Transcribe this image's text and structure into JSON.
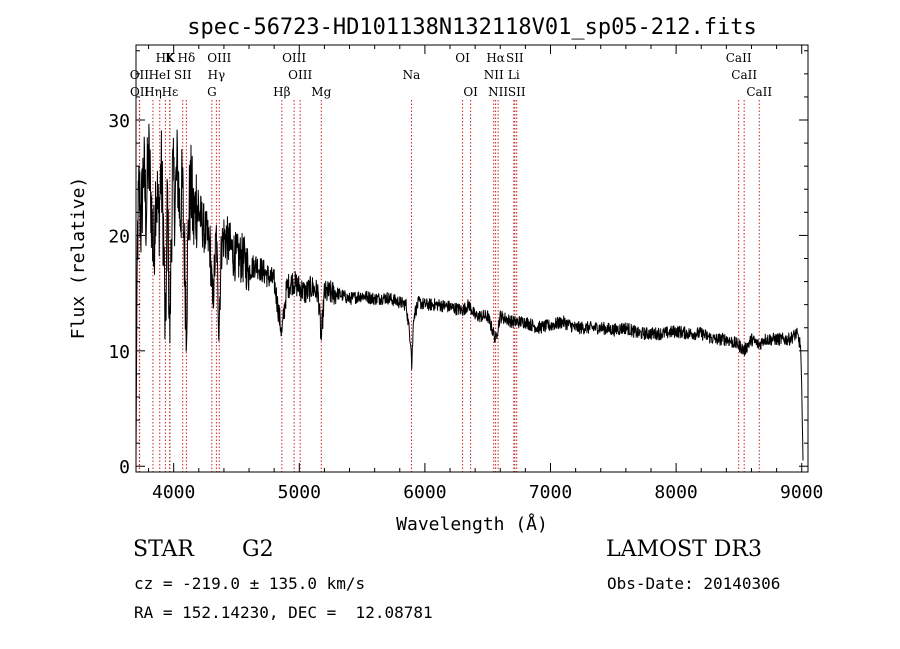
{
  "chart_data": {
    "type": "line",
    "title": "spec-56723-HD101138N132118V01_sp05-212.fits",
    "xlabel": "Wavelength (Å)",
    "ylabel": "Flux (relative)",
    "xlim": [
      3700,
      9050
    ],
    "ylim": [
      -0.5,
      36.5
    ],
    "xticks": [
      4000,
      5000,
      6000,
      7000,
      8000,
      9000
    ],
    "yticks": [
      0,
      10,
      20,
      30
    ],
    "xtick_labels": [
      "4000",
      "5000",
      "6000",
      "7000",
      "8000",
      "9000"
    ],
    "ytick_labels": [
      "0",
      "10",
      "20",
      "30"
    ],
    "line_color": "#000000",
    "marker_color": "#cc2222",
    "grid": false,
    "legend": "none",
    "spectrum": {
      "name": "flux",
      "x": [
        3700,
        3710,
        3725,
        3740,
        3760,
        3780,
        3800,
        3820,
        3840,
        3860,
        3880,
        3900,
        3920,
        3934,
        3950,
        3968,
        3990,
        4010,
        4030,
        4050,
        4070,
        4101,
        4120,
        4140,
        4160,
        4180,
        4200,
        4230,
        4260,
        4290,
        4310,
        4340,
        4360,
        4380,
        4400,
        4450,
        4500,
        4550,
        4600,
        4650,
        4700,
        4750,
        4800,
        4861,
        4900,
        4950,
        5000,
        5050,
        5100,
        5150,
        5175,
        5200,
        5300,
        5400,
        5500,
        5600,
        5700,
        5800,
        5850,
        5890,
        5895,
        5910,
        5950,
        6000,
        6100,
        6200,
        6300,
        6350,
        6400,
        6500,
        6563,
        6600,
        6700,
        6800,
        6900,
        7000,
        7100,
        7200,
        7300,
        7400,
        7500,
        7600,
        7700,
        7800,
        7900,
        8000,
        8100,
        8200,
        8300,
        8400,
        8500,
        8542,
        8600,
        8662,
        8700,
        8800,
        8900,
        8960,
        8990,
        9000,
        9010
      ],
      "values": [
        0.3,
        19,
        24,
        21,
        26,
        22,
        27,
        23,
        18,
        25,
        21,
        26,
        20,
        10,
        24,
        11,
        25,
        23,
        26,
        22,
        24,
        13,
        22,
        24,
        21,
        23,
        22,
        21,
        20,
        19,
        14,
        20,
        12,
        19,
        20,
        19,
        18,
        18,
        17,
        17.5,
        17,
        16.5,
        16,
        11.5,
        15.5,
        16,
        15.5,
        15,
        15.5,
        15,
        11,
        15,
        15,
        14.5,
        14.8,
        14.5,
        14.6,
        14.2,
        14,
        10.5,
        8.5,
        13,
        14.2,
        14,
        14,
        13.8,
        13.5,
        14,
        13,
        13,
        11,
        13,
        12.5,
        12.5,
        12,
        12.2,
        12.5,
        12,
        12,
        12,
        11.8,
        12,
        11.5,
        11.5,
        11.5,
        11.7,
        11.5,
        11.5,
        11,
        11,
        10.5,
        10,
        11,
        10.5,
        11,
        11,
        11,
        11.5,
        10.5,
        7,
        0.5
      ]
    },
    "line_markers": [
      {
        "label": "HK",
        "wavelength": 3934,
        "row": 1
      },
      {
        "label": "K",
        "wavelength": 3968,
        "row": 1
      },
      {
        "label": "Hδ",
        "wavelength": 4101,
        "row": 1
      },
      {
        "label": "OIII",
        "wavelength": 4363,
        "row": 1
      },
      {
        "label": "OIII",
        "wavelength": 4959,
        "row": 1
      },
      {
        "label": "OI",
        "wavelength": 6300,
        "row": 1
      },
      {
        "label": "Hα",
        "wavelength": 6563,
        "row": 1
      },
      {
        "label": "SII",
        "wavelength": 6716,
        "row": 1
      },
      {
        "label": "CaII",
        "wavelength": 8498,
        "row": 1
      },
      {
        "label": "OII",
        "wavelength": 3727,
        "row": 2
      },
      {
        "label": "HeI",
        "wavelength": 3889,
        "row": 2
      },
      {
        "label": "SII",
        "wavelength": 4072,
        "row": 2
      },
      {
        "label": "Hγ",
        "wavelength": 4340,
        "row": 2
      },
      {
        "label": "OIII",
        "wavelength": 5007,
        "row": 2
      },
      {
        "label": "Na",
        "wavelength": 5893,
        "row": 2
      },
      {
        "label": "NII",
        "wavelength": 6548,
        "row": 2
      },
      {
        "label": "Li",
        "wavelength": 6708,
        "row": 2
      },
      {
        "label": "CaII",
        "wavelength": 8542,
        "row": 2
      },
      {
        "label": "OII",
        "wavelength": 3729,
        "row": 3
      },
      {
        "label": "Hη",
        "wavelength": 3835,
        "row": 3
      },
      {
        "label": "Hε",
        "wavelength": 3970,
        "row": 3
      },
      {
        "label": "G",
        "wavelength": 4304,
        "row": 3
      },
      {
        "label": "Hβ",
        "wavelength": 4861,
        "row": 3
      },
      {
        "label": "Mg",
        "wavelength": 5175,
        "row": 3
      },
      {
        "label": "OI",
        "wavelength": 6364,
        "row": 3
      },
      {
        "label": "NII",
        "wavelength": 6583,
        "row": 3
      },
      {
        "label": "SII",
        "wavelength": 6731,
        "row": 3
      },
      {
        "label": "CaII",
        "wavelength": 8662,
        "row": 3
      }
    ]
  },
  "footer": {
    "object_class": "STAR",
    "subclass": "G2",
    "survey": "LAMOST DR3",
    "redshift_line": "cz = -219.0 ± 135.0 km/s",
    "obs_date_line": "Obs-Date: 20140306",
    "coords_line": "RA = 152.14230, DEC =  12.08781"
  }
}
